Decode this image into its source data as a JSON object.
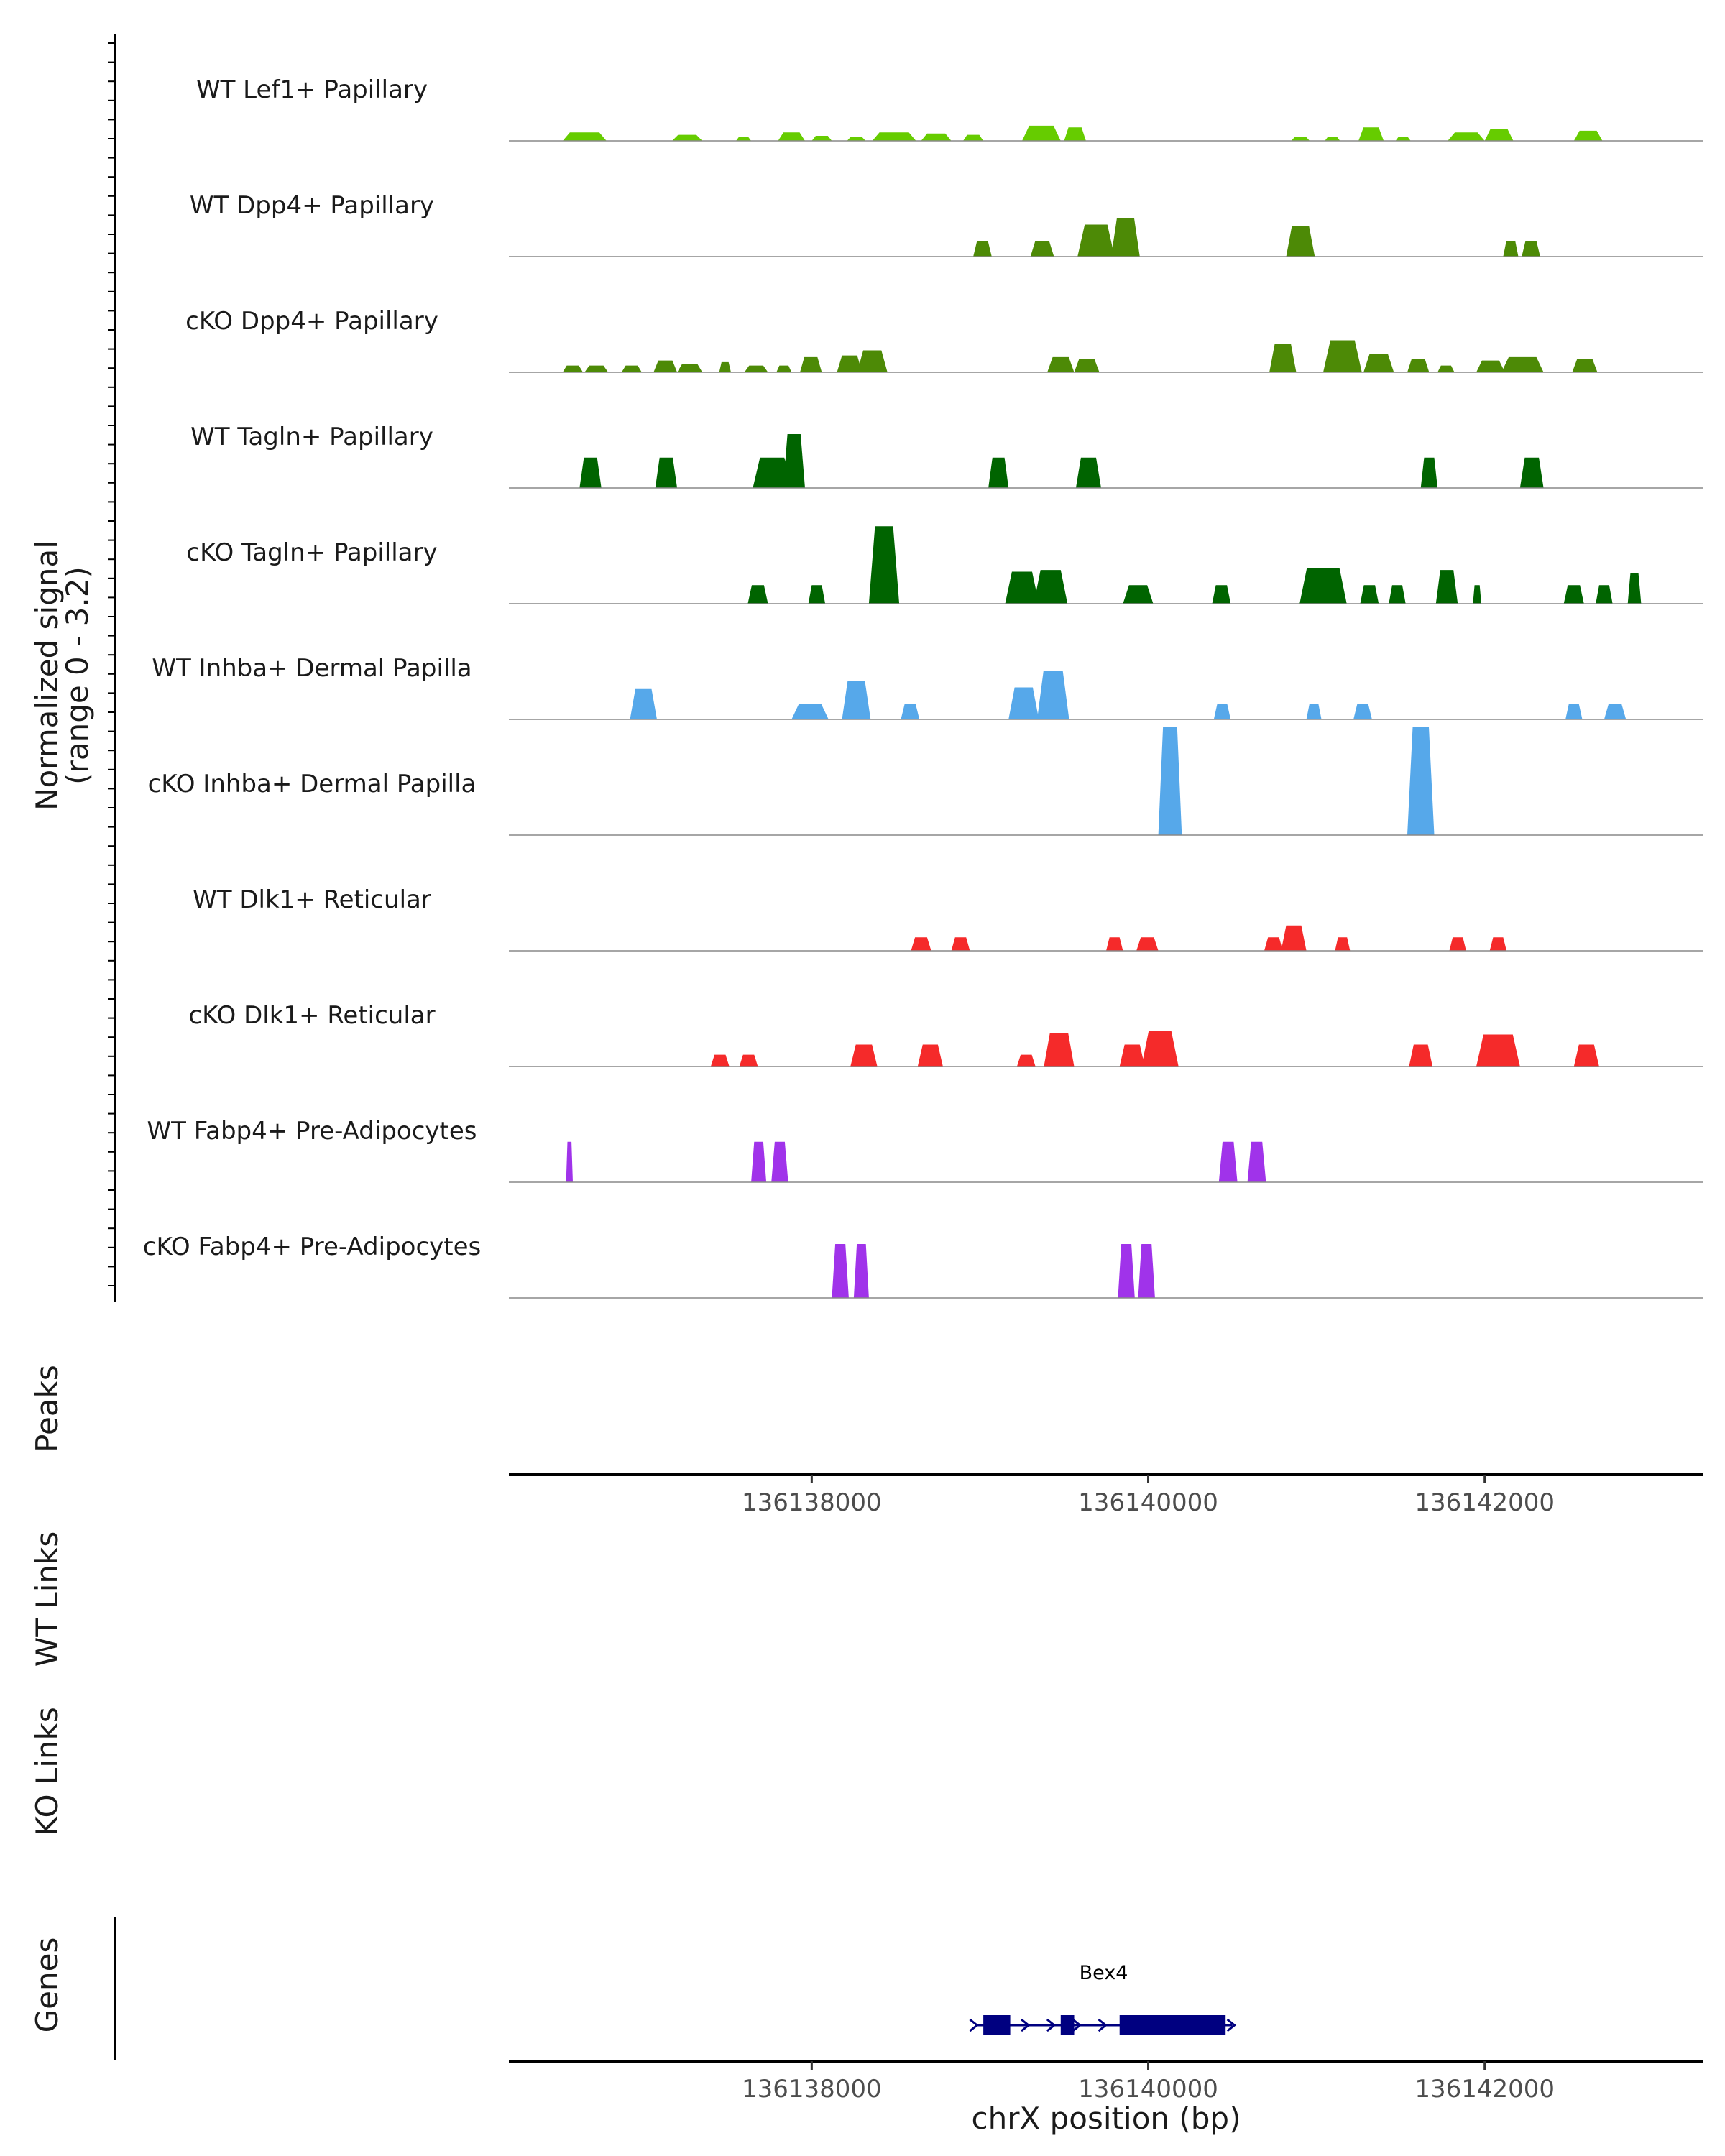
{
  "chart_data": {
    "type": "area",
    "title": "",
    "ylabel": "Normalized signal",
    "ylabel_range": "(range 0 - 3.2)",
    "ylim": [
      0,
      3.2
    ],
    "xlabel": "chrX position (bp)",
    "xlim": [
      136136200,
      136143300
    ],
    "xticks": [
      136138000,
      136140000,
      136142000
    ],
    "xtick_labels": [
      "136138000",
      "136140000",
      "136142000"
    ],
    "section_labels": {
      "peaks": "Peaks",
      "wt_links": "WT Links",
      "ko_links": "KO Links",
      "genes": "Genes"
    },
    "tracks": [
      {
        "name": "WT Lef1+ Papillary",
        "color": "#66cc00",
        "peaks": [
          [
            136136520,
            136136780,
            0.25
          ],
          [
            136137170,
            136137350,
            0.18
          ],
          [
            136137550,
            136137640,
            0.12
          ],
          [
            136137800,
            136137960,
            0.25
          ],
          [
            136138000,
            136138120,
            0.15
          ],
          [
            136138210,
            136138320,
            0.12
          ],
          [
            136138360,
            136138620,
            0.25
          ],
          [
            136138650,
            136138830,
            0.22
          ],
          [
            136138900,
            136139020,
            0.18
          ],
          [
            136139250,
            136139480,
            0.45
          ],
          [
            136139500,
            136139630,
            0.4
          ],
          [
            136140850,
            136140960,
            0.12
          ],
          [
            136141050,
            136141140,
            0.12
          ],
          [
            136141250,
            136141400,
            0.4
          ],
          [
            136141470,
            136141560,
            0.12
          ],
          [
            136141780,
            136142000,
            0.25
          ],
          [
            136142000,
            136142170,
            0.35
          ],
          [
            136142530,
            136142700,
            0.3
          ]
        ]
      },
      {
        "name": "WT Dpp4+ Papillary",
        "color": "#4d8a06",
        "peaks": [
          [
            136138960,
            136139070,
            0.45
          ],
          [
            136139300,
            136139440,
            0.45
          ],
          [
            136139580,
            136139800,
            0.95
          ],
          [
            136139780,
            136139950,
            1.15
          ],
          [
            136140820,
            136140990,
            0.9
          ],
          [
            136142110,
            136142200,
            0.45
          ],
          [
            136142220,
            136142330,
            0.45
          ]
        ]
      },
      {
        "name": "cKO Dpp4+ Papillary",
        "color": "#4d8a06",
        "peaks": [
          [
            136136520,
            136136640,
            0.2
          ],
          [
            136136650,
            136136790,
            0.2
          ],
          [
            136136870,
            136136990,
            0.2
          ],
          [
            136137060,
            136137200,
            0.35
          ],
          [
            136137200,
            136137350,
            0.25
          ],
          [
            136137450,
            136137520,
            0.3
          ],
          [
            136137600,
            136137740,
            0.2
          ],
          [
            136137790,
            136137880,
            0.2
          ],
          [
            136137930,
            136138060,
            0.45
          ],
          [
            136138150,
            136138300,
            0.5
          ],
          [
            136138270,
            136138450,
            0.65
          ],
          [
            136139400,
            136139560,
            0.45
          ],
          [
            136139560,
            136139710,
            0.4
          ],
          [
            136140720,
            136140880,
            0.85
          ],
          [
            136141040,
            136141270,
            0.95
          ],
          [
            136141280,
            136141460,
            0.55
          ],
          [
            136141540,
            136141670,
            0.4
          ],
          [
            136141720,
            136141820,
            0.2
          ],
          [
            136141950,
            136142120,
            0.35
          ],
          [
            136142100,
            136142350,
            0.45
          ],
          [
            136142520,
            136142670,
            0.4
          ]
        ]
      },
      {
        "name": "WT Tagln+ Papillary",
        "color": "#006400",
        "peaks": [
          [
            136136620,
            136136750,
            0.9
          ],
          [
            136137070,
            136137200,
            0.9
          ],
          [
            136137650,
            136137880,
            0.9
          ],
          [
            136137830,
            136137960,
            1.6
          ],
          [
            136139050,
            136139170,
            0.9
          ],
          [
            136139570,
            136139720,
            0.9
          ],
          [
            136141620,
            136141720,
            0.9
          ],
          [
            136142210,
            136142350,
            0.9
          ]
        ]
      },
      {
        "name": "cKO Tagln+ Papillary",
        "color": "#006400",
        "peaks": [
          [
            136137620,
            136137740,
            0.55
          ],
          [
            136137980,
            136138080,
            0.55
          ],
          [
            136138340,
            136138520,
            2.3
          ],
          [
            136139150,
            136139350,
            0.95
          ],
          [
            136139320,
            136139520,
            1.0
          ],
          [
            136139850,
            136140030,
            0.55
          ],
          [
            136140380,
            136140490,
            0.55
          ],
          [
            136140900,
            136141180,
            1.05
          ],
          [
            136141260,
            136141370,
            0.55
          ],
          [
            136141430,
            136141530,
            0.55
          ],
          [
            136141710,
            136141840,
            1.0
          ],
          [
            136141930,
            136141980,
            0.55
          ],
          [
            136142470,
            136142590,
            0.55
          ],
          [
            136142660,
            136142760,
            0.55
          ],
          [
            136142850,
            136142930,
            0.9
          ]
        ]
      },
      {
        "name": "WT Inhba+ Dermal Papilla",
        "color": "#56a8ea",
        "peaks": [
          [
            136136920,
            136137080,
            0.9
          ],
          [
            136137880,
            136138100,
            0.45
          ],
          [
            136138180,
            136138350,
            1.15
          ],
          [
            136138530,
            136138640,
            0.45
          ],
          [
            136139170,
            136139350,
            0.95
          ],
          [
            136139340,
            136139530,
            1.45
          ],
          [
            136140390,
            136140490,
            0.45
          ],
          [
            136140940,
            136141030,
            0.45
          ],
          [
            136141220,
            136141330,
            0.45
          ],
          [
            136142480,
            136142580,
            0.45
          ],
          [
            136142710,
            136142840,
            0.45
          ]
        ]
      },
      {
        "name": "cKO Inhba+ Dermal Papilla",
        "color": "#56a8ea",
        "peaks": [
          [
            136140060,
            136140200,
            3.2
          ],
          [
            136141540,
            136141700,
            3.2
          ]
        ]
      },
      {
        "name": "WT Dlk1+ Reticular",
        "color": "#f52a2a",
        "peaks": [
          [
            136138590,
            136138710,
            0.4
          ],
          [
            136138830,
            136138940,
            0.4
          ],
          [
            136139750,
            136139850,
            0.4
          ],
          [
            136139930,
            136140060,
            0.4
          ],
          [
            136140690,
            136140800,
            0.4
          ],
          [
            136140790,
            136140940,
            0.75
          ],
          [
            136141110,
            136141200,
            0.4
          ],
          [
            136141790,
            136141890,
            0.4
          ],
          [
            136142030,
            136142130,
            0.4
          ]
        ]
      },
      {
        "name": "cKO Dlk1+ Reticular",
        "color": "#f52a2a",
        "peaks": [
          [
            136137400,
            136137510,
            0.35
          ],
          [
            136137570,
            136137680,
            0.35
          ],
          [
            136138230,
            136138390,
            0.65
          ],
          [
            136138630,
            136138780,
            0.65
          ],
          [
            136139220,
            136139330,
            0.35
          ],
          [
            136139380,
            136139560,
            1.0
          ],
          [
            136139830,
            136139980,
            0.65
          ],
          [
            136139960,
            136140180,
            1.05
          ],
          [
            136141550,
            136141690,
            0.65
          ],
          [
            136141950,
            136142210,
            0.95
          ],
          [
            136142530,
            136142680,
            0.65
          ]
        ]
      },
      {
        "name": "WT Fabp4+ Pre-Adipocytes",
        "color": "#a033ea",
        "peaks": [
          [
            136136540,
            136136580,
            1.2
          ],
          [
            136137640,
            136137730,
            1.2
          ],
          [
            136137760,
            136137860,
            1.2
          ],
          [
            136140420,
            136140530,
            1.2
          ],
          [
            136140590,
            136140700,
            1.2
          ]
        ]
      },
      {
        "name": "cKO Fabp4+ Pre-Adipocytes",
        "color": "#a033ea",
        "peaks": [
          [
            136138120,
            136138220,
            1.6
          ],
          [
            136138250,
            136138340,
            1.6
          ],
          [
            136139820,
            136139920,
            1.6
          ],
          [
            136139940,
            136140040,
            1.6
          ]
        ]
      }
    ],
    "gene": {
      "name": "Bex4",
      "color": "#000080",
      "start": 136138970,
      "end": 136140500,
      "strand": "+",
      "exons": [
        [
          136139020,
          136139180
        ],
        [
          136139480,
          136139560
        ],
        [
          136139830,
          136140460
        ]
      ]
    }
  }
}
